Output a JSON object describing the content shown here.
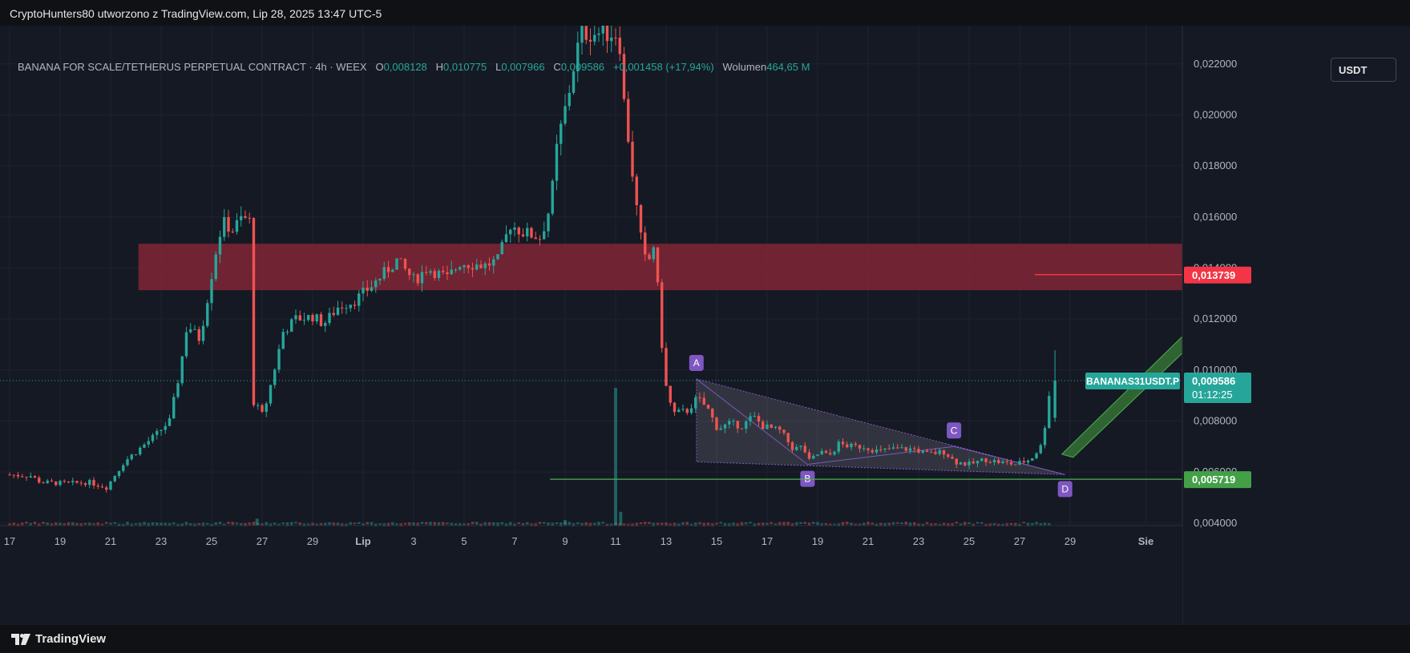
{
  "header": {
    "credit": "CryptoHunters80 utworzono z TradingView.com, Lip 28, 2025 13:47 UTC-5"
  },
  "legend": {
    "symbol": "BANANA FOR SCALE/TETHERUS PERPETUAL CONTRACT · 4h · WEEX",
    "o_label": "O",
    "o_value": "0,008128",
    "h_label": "H",
    "h_value": "0,010775",
    "l_label": "L",
    "l_value": "0,007966",
    "c_label": "C",
    "c_value": "0,009586",
    "change": "+0,001458 (+17,94%)",
    "vol_label": "Wolumen",
    "vol_value": "464,65 M"
  },
  "currency_button": "USDT",
  "footer": {
    "brand": "TradingView"
  },
  "colors": {
    "up": "#26a69a",
    "down": "#ef5350",
    "zone": "#8b2636",
    "support": "#4caf50",
    "pattern": "#7e57c2",
    "arrow": "#3e8e3a",
    "background": "#151924"
  },
  "chart_data": {
    "type": "candlestick",
    "timeframe": "4h",
    "ylim": [
      0.0039,
      0.0235
    ],
    "y_ticks": [
      "0,004000",
      "0,006000",
      "0,008000",
      "0,010000",
      "0,012000",
      "0,014000",
      "0,016000",
      "0,018000",
      "0,020000",
      "0,022000"
    ],
    "y_tick_values": [
      0.004,
      0.006,
      0.008,
      0.01,
      0.012,
      0.014,
      0.016,
      0.018,
      0.02,
      0.022
    ],
    "x_range": [
      0,
      46.5
    ],
    "x_ticks": [
      {
        "day": 0,
        "label": "17"
      },
      {
        "day": 2,
        "label": "19"
      },
      {
        "day": 4,
        "label": "21"
      },
      {
        "day": 6,
        "label": "23"
      },
      {
        "day": 8,
        "label": "25"
      },
      {
        "day": 10,
        "label": "27"
      },
      {
        "day": 12,
        "label": "29"
      },
      {
        "day": 14,
        "label": "Lip"
      },
      {
        "day": 16,
        "label": "3"
      },
      {
        "day": 18,
        "label": "5"
      },
      {
        "day": 20,
        "label": "7"
      },
      {
        "day": 22,
        "label": "9"
      },
      {
        "day": 24,
        "label": "11"
      },
      {
        "day": 26,
        "label": "13"
      },
      {
        "day": 28,
        "label": "15"
      },
      {
        "day": 30,
        "label": "17"
      },
      {
        "day": 32,
        "label": "19"
      },
      {
        "day": 34,
        "label": "21"
      },
      {
        "day": 36,
        "label": "23"
      },
      {
        "day": 38,
        "label": "25"
      },
      {
        "day": 40,
        "label": "27"
      },
      {
        "day": 42,
        "label": "29"
      },
      {
        "day": 45,
        "label": "Sie"
      }
    ],
    "price_path": [
      [
        0,
        0.0059
      ],
      [
        1.0,
        0.00585
      ],
      [
        1.4,
        0.0056
      ],
      [
        2.5,
        0.00555
      ],
      [
        3.3,
        0.0056
      ],
      [
        4.0,
        0.0054
      ],
      [
        4.7,
        0.0064
      ],
      [
        5.3,
        0.0069
      ],
      [
        6.0,
        0.0075
      ],
      [
        6.5,
        0.008
      ],
      [
        6.9,
        0.0099
      ],
      [
        7.2,
        0.0118
      ],
      [
        7.7,
        0.0112
      ],
      [
        8.0,
        0.0128
      ],
      [
        8.3,
        0.0145
      ],
      [
        8.6,
        0.0158
      ],
      [
        9.0,
        0.0155
      ],
      [
        9.4,
        0.016
      ],
      [
        9.7,
        0.0158
      ],
      [
        9.8,
        0.0088
      ],
      [
        10.2,
        0.0082
      ],
      [
        10.6,
        0.0098
      ],
      [
        11.0,
        0.0115
      ],
      [
        11.5,
        0.012
      ],
      [
        12.2,
        0.0121
      ],
      [
        12.6,
        0.0118
      ],
      [
        13.2,
        0.0125
      ],
      [
        13.8,
        0.0127
      ],
      [
        14.5,
        0.0133
      ],
      [
        15.0,
        0.0138
      ],
      [
        15.5,
        0.0143
      ],
      [
        16.2,
        0.0135
      ],
      [
        16.7,
        0.014
      ],
      [
        17.5,
        0.0136
      ],
      [
        18.0,
        0.0142
      ],
      [
        19.0,
        0.0141
      ],
      [
        19.5,
        0.0143
      ],
      [
        20.0,
        0.0157
      ],
      [
        20.5,
        0.0154
      ],
      [
        21.2,
        0.0152
      ],
      [
        21.6,
        0.0165
      ],
      [
        21.8,
        0.0185
      ],
      [
        22.0,
        0.0195
      ],
      [
        22.3,
        0.0208
      ],
      [
        22.6,
        0.0224
      ],
      [
        22.8,
        0.0232
      ],
      [
        24.3,
        0.0232
      ],
      [
        24.5,
        0.0205
      ],
      [
        24.8,
        0.018
      ],
      [
        25.1,
        0.0155
      ],
      [
        25.4,
        0.014
      ],
      [
        25.7,
        0.015
      ],
      [
        26.0,
        0.011
      ],
      [
        26.2,
        0.009
      ],
      [
        26.5,
        0.0083
      ],
      [
        27.0,
        0.0084
      ],
      [
        27.4,
        0.0089
      ],
      [
        27.8,
        0.0085
      ],
      [
        28.2,
        0.0077
      ],
      [
        28.7,
        0.0079
      ],
      [
        29.2,
        0.0078
      ],
      [
        29.6,
        0.0082
      ],
      [
        30.0,
        0.0078
      ],
      [
        30.7,
        0.0076
      ],
      [
        31.2,
        0.0069
      ],
      [
        31.6,
        0.007
      ],
      [
        31.8,
        0.0064
      ],
      [
        32.3,
        0.0068
      ],
      [
        32.6,
        0.0066
      ],
      [
        33.0,
        0.0071
      ],
      [
        33.5,
        0.007
      ],
      [
        34.0,
        0.007
      ],
      [
        34.6,
        0.0068
      ],
      [
        35.0,
        0.0069
      ],
      [
        36.0,
        0.0069
      ],
      [
        36.5,
        0.0067
      ],
      [
        37.2,
        0.0068
      ],
      [
        37.6,
        0.0064
      ],
      [
        38.2,
        0.0063
      ],
      [
        38.8,
        0.0065
      ],
      [
        39.3,
        0.0064
      ],
      [
        40.0,
        0.0063
      ],
      [
        40.6,
        0.0065
      ],
      [
        41.0,
        0.007
      ],
      [
        41.2,
        0.008
      ],
      [
        41.4,
        0.0096
      ]
    ],
    "last_candle": {
      "o": 0.008128,
      "h": 0.010775,
      "l": 0.007966,
      "c": 0.009586
    },
    "volume_spikes": [
      {
        "day": 24.0,
        "rel": 1.0
      },
      {
        "day": 24.2,
        "rel": 0.1
      },
      {
        "day": 9.8,
        "rel": 0.05
      },
      {
        "day": 22.0,
        "rel": 0.04
      }
    ],
    "resistance_zone": {
      "from_day": 5.1,
      "low": 0.01313,
      "high": 0.01495
    },
    "target_line": {
      "from_day": 40.6,
      "value": 0.013739
    },
    "support_line": {
      "from_day": 21.4,
      "value": 0.005719
    },
    "current_price_line": {
      "value": 0.009586
    },
    "harmonic_pattern": {
      "points": [
        {
          "label": "A",
          "day": 27.2,
          "value": 0.00965
        },
        {
          "label": "B",
          "day": 31.6,
          "value": 0.0063
        },
        {
          "label": "C",
          "day": 37.4,
          "value": 0.007
        },
        {
          "label": "D",
          "day": 41.8,
          "value": 0.0059
        }
      ]
    },
    "price_labels": [
      {
        "text": "0,013739",
        "value": 0.013739,
        "color": "#f23645"
      },
      {
        "text": "0,009586",
        "value": 0.009586,
        "color": "#26a69a",
        "sub": "01:12:25"
      },
      {
        "text": "0,005719",
        "value": 0.005719,
        "color": "#43a047"
      }
    ],
    "symbol_tag": "BANANAS31USDT.P"
  }
}
